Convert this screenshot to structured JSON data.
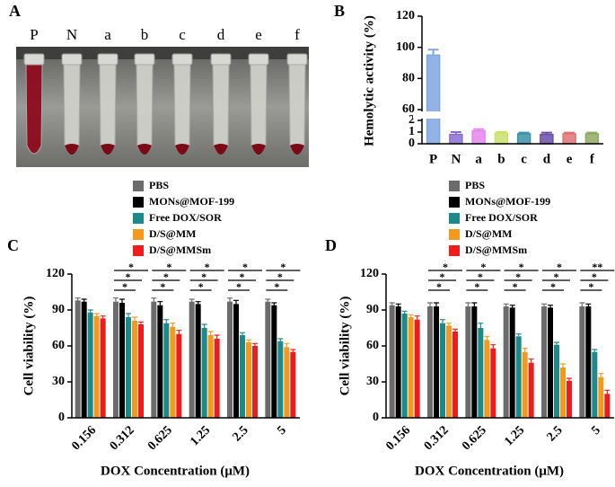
{
  "photo": {
    "panel_label": "A",
    "tube_labels": [
      "P",
      "N",
      "a",
      "b",
      "c",
      "d",
      "e",
      "f"
    ]
  },
  "chart_data": [
    {
      "type": "bar",
      "panel_label": "B",
      "ylabel": "Hemolytic activity (%)",
      "categories": [
        "P",
        "N",
        "a",
        "b",
        "c",
        "d",
        "e",
        "f"
      ],
      "values": [
        95,
        0.8,
        1.1,
        0.9,
        0.85,
        0.8,
        0.85,
        0.85
      ],
      "errors": [
        3.5,
        0.2,
        0.15,
        0.1,
        0.1,
        0.15,
        0.1,
        0.1
      ],
      "colors": [
        "#7fa6e0",
        "#8a6fd0",
        "#e685ee",
        "#c9e26a",
        "#3a93a6",
        "#6b4ea8",
        "#e07272",
        "#8eab62"
      ],
      "ylim": [
        0,
        120
      ],
      "axis_break": [
        2,
        60
      ],
      "yticks": [
        0,
        1,
        2,
        60,
        80,
        100,
        120
      ]
    },
    {
      "type": "grouped_bar",
      "panel_label": "C",
      "ylabel": "Cell viability (%)",
      "xlabel": "DOX Concentration (μM)",
      "categories": [
        "0.156",
        "0.312",
        "0.625",
        "1.25",
        "2.5",
        "5"
      ],
      "series": [
        {
          "name": "PBS",
          "color": "#6b6b6b",
          "values": [
            98,
            97,
            97,
            97,
            97,
            97
          ],
          "errors": [
            2,
            3,
            3,
            2,
            3,
            2
          ]
        },
        {
          "name": "MONs@MOF-199",
          "color": "#000000",
          "values": [
            97,
            96,
            94,
            95,
            95,
            94
          ],
          "errors": [
            2,
            3,
            3,
            2,
            3,
            2
          ]
        },
        {
          "name": "Free DOX/SOR",
          "color": "#1b8a8a",
          "values": [
            88,
            84,
            79,
            75,
            69,
            64
          ],
          "errors": [
            2,
            3,
            3,
            3,
            2,
            2
          ]
        },
        {
          "name": "D/S@MM",
          "color": "#f39a1d",
          "values": [
            85,
            81,
            76,
            69,
            63,
            59
          ],
          "errors": [
            2,
            3,
            3,
            3,
            2,
            3
          ]
        },
        {
          "name": "D/S@MMSm",
          "color": "#ee1c1c",
          "values": [
            83,
            78,
            70,
            66,
            60,
            55
          ],
          "errors": [
            2,
            2,
            3,
            3,
            2,
            2
          ]
        }
      ],
      "significance": [
        null,
        [
          "*",
          "*",
          "*"
        ],
        [
          "*",
          "*",
          "*"
        ],
        [
          "*",
          "*",
          "*"
        ],
        [
          "*",
          "*",
          "*"
        ],
        [
          "*",
          "*",
          "*"
        ]
      ],
      "ylim": [
        0,
        120
      ],
      "yticks": [
        0,
        30,
        60,
        90,
        120
      ]
    },
    {
      "type": "grouped_bar",
      "panel_label": "D",
      "ylabel": "Cell viability (%)",
      "xlabel": "DOX Concentration (μM)",
      "categories": [
        "0.156",
        "0.312",
        "0.625",
        "1.25",
        "2.5",
        "5"
      ],
      "series": [
        {
          "name": "PBS",
          "color": "#6b6b6b",
          "values": [
            94,
            93,
            93,
            93,
            93,
            93
          ],
          "errors": [
            2,
            3,
            3,
            2,
            2,
            3
          ]
        },
        {
          "name": "MONs@MOF-199",
          "color": "#000000",
          "values": [
            93,
            93,
            93,
            92,
            92,
            93
          ],
          "errors": [
            2,
            3,
            3,
            2,
            2,
            2
          ]
        },
        {
          "name": "Free DOX/SOR",
          "color": "#1b8a8a",
          "values": [
            87,
            79,
            75,
            68,
            61,
            55
          ],
          "errors": [
            2,
            3,
            4,
            2,
            2,
            2
          ]
        },
        {
          "name": "D/S@MM",
          "color": "#f39a1d",
          "values": [
            84,
            77,
            65,
            55,
            42,
            34
          ],
          "errors": [
            2,
            2,
            3,
            3,
            3,
            3
          ]
        },
        {
          "name": "D/S@MMSm",
          "color": "#ee1c1c",
          "values": [
            82,
            72,
            58,
            46,
            31,
            20
          ],
          "errors": [
            3,
            2,
            3,
            3,
            2,
            3
          ]
        }
      ],
      "significance": [
        null,
        [
          "*",
          "*",
          "*"
        ],
        [
          "*",
          "*",
          "*"
        ],
        [
          "*",
          "*",
          "*"
        ],
        [
          "*",
          "*",
          "*"
        ],
        [
          "**",
          "*",
          "*"
        ]
      ],
      "ylim": [
        0,
        120
      ],
      "yticks": [
        0,
        30,
        60,
        90,
        120
      ]
    }
  ]
}
